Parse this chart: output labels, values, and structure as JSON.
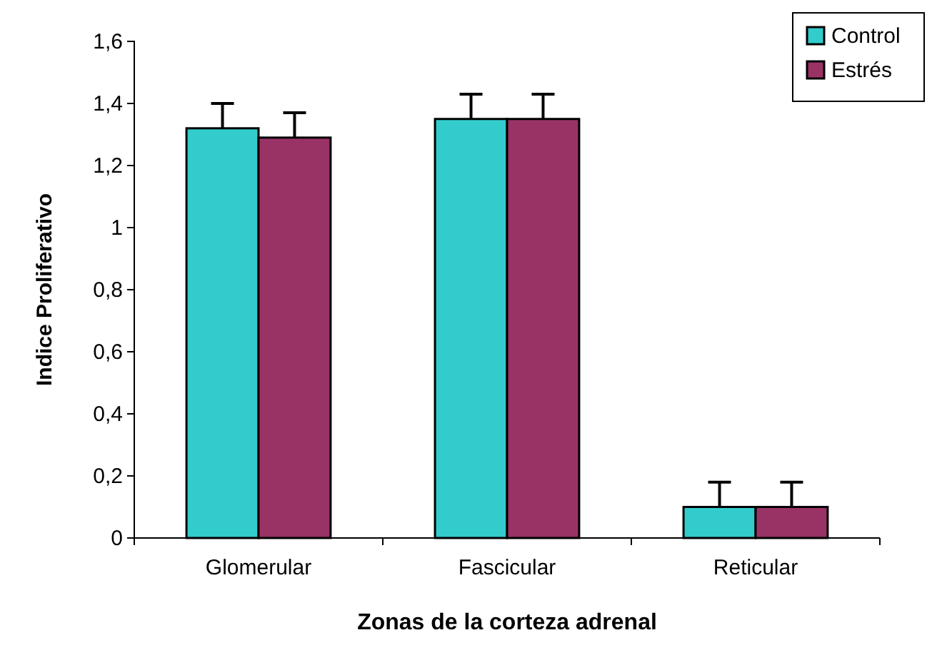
{
  "chart_data": {
    "type": "bar",
    "xlabel": "Zonas de la corteza adrenal",
    "ylabel": "Indice Proliferativo",
    "categories": [
      "Glomerular",
      "Fascicular",
      "Reticular"
    ],
    "series": [
      {
        "name": "Control",
        "color": "#33cccc",
        "values": [
          1.32,
          1.35,
          0.1
        ],
        "errors": [
          [
            1.32,
            1.4
          ],
          [
            1.35,
            1.43
          ],
          [
            0.1,
            0.18
          ]
        ]
      },
      {
        "name": "Estrés",
        "color": "#993366",
        "values": [
          1.29,
          1.35,
          0.1
        ],
        "errors": [
          [
            1.29,
            1.37
          ],
          [
            1.35,
            1.43
          ],
          [
            0.1,
            0.18
          ]
        ]
      }
    ],
    "ylim": [
      0,
      1.6
    ],
    "yticks": [
      0,
      {
        "value": 0.2,
        "label": "0,2"
      },
      {
        "value": 0.4,
        "label": "0,4"
      },
      {
        "value": 0.6,
        "label": "0,6"
      },
      {
        "value": 0.8,
        "label": "0,8"
      },
      1,
      {
        "value": 1.2,
        "label": "1,2"
      },
      {
        "value": 1.4,
        "label": "1,4"
      },
      {
        "value": 1.6,
        "label": "1,6"
      }
    ],
    "grid": false,
    "legend": "top right"
  }
}
